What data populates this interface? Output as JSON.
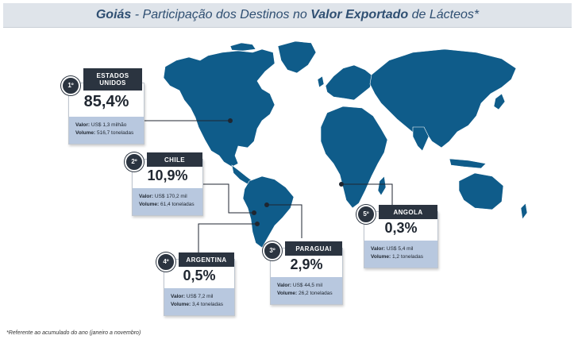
{
  "header": {
    "title_prefix": "Goiás",
    "title_dash": " - ",
    "title_mid": "Participação dos Destinos no ",
    "title_bold": "Valor Exportado",
    "title_suffix": " de Lácteos*"
  },
  "colors": {
    "map": "#0f5c8a",
    "tab": "#2b3440",
    "info_bg": "#b8c8df"
  },
  "destinations": [
    {
      "rank": "1º",
      "country": "ESTADOS UNIDOS",
      "share": "85,4%",
      "share_value": 85.4,
      "valor_label": "Valor:",
      "valor": "US$ 1,3 milhão",
      "volume_label": "Volume:",
      "volume": "516,7 toneladas"
    },
    {
      "rank": "2º",
      "country": "CHILE",
      "share": "10,9%",
      "share_value": 10.9,
      "valor_label": "Valor:",
      "valor": "US$ 170,2 mil",
      "volume_label": "Volume:",
      "volume": "61,4 toneladas"
    },
    {
      "rank": "3º",
      "country": "PARAGUAI",
      "share": "2,9%",
      "share_value": 2.9,
      "valor_label": "Valor:",
      "valor": "US$ 44,5 mil",
      "volume_label": "Volume:",
      "volume": "26,2 toneladas"
    },
    {
      "rank": "4º",
      "country": "ARGENTINA",
      "share": "0,5%",
      "share_value": 0.5,
      "valor_label": "Valor:",
      "valor": "US$ 7,2 mil",
      "volume_label": "Volume:",
      "volume": "3,4 toneladas"
    },
    {
      "rank": "5º",
      "country": "ANGOLA",
      "share": "0,3%",
      "share_value": 0.3,
      "valor_label": "Valor:",
      "valor": "US$ 5,4 mil",
      "volume_label": "Volume:",
      "volume": "1,2 toneladas"
    }
  ],
  "footnote": "*Referente ao acumulado do ano (janeiro a novembro)"
}
